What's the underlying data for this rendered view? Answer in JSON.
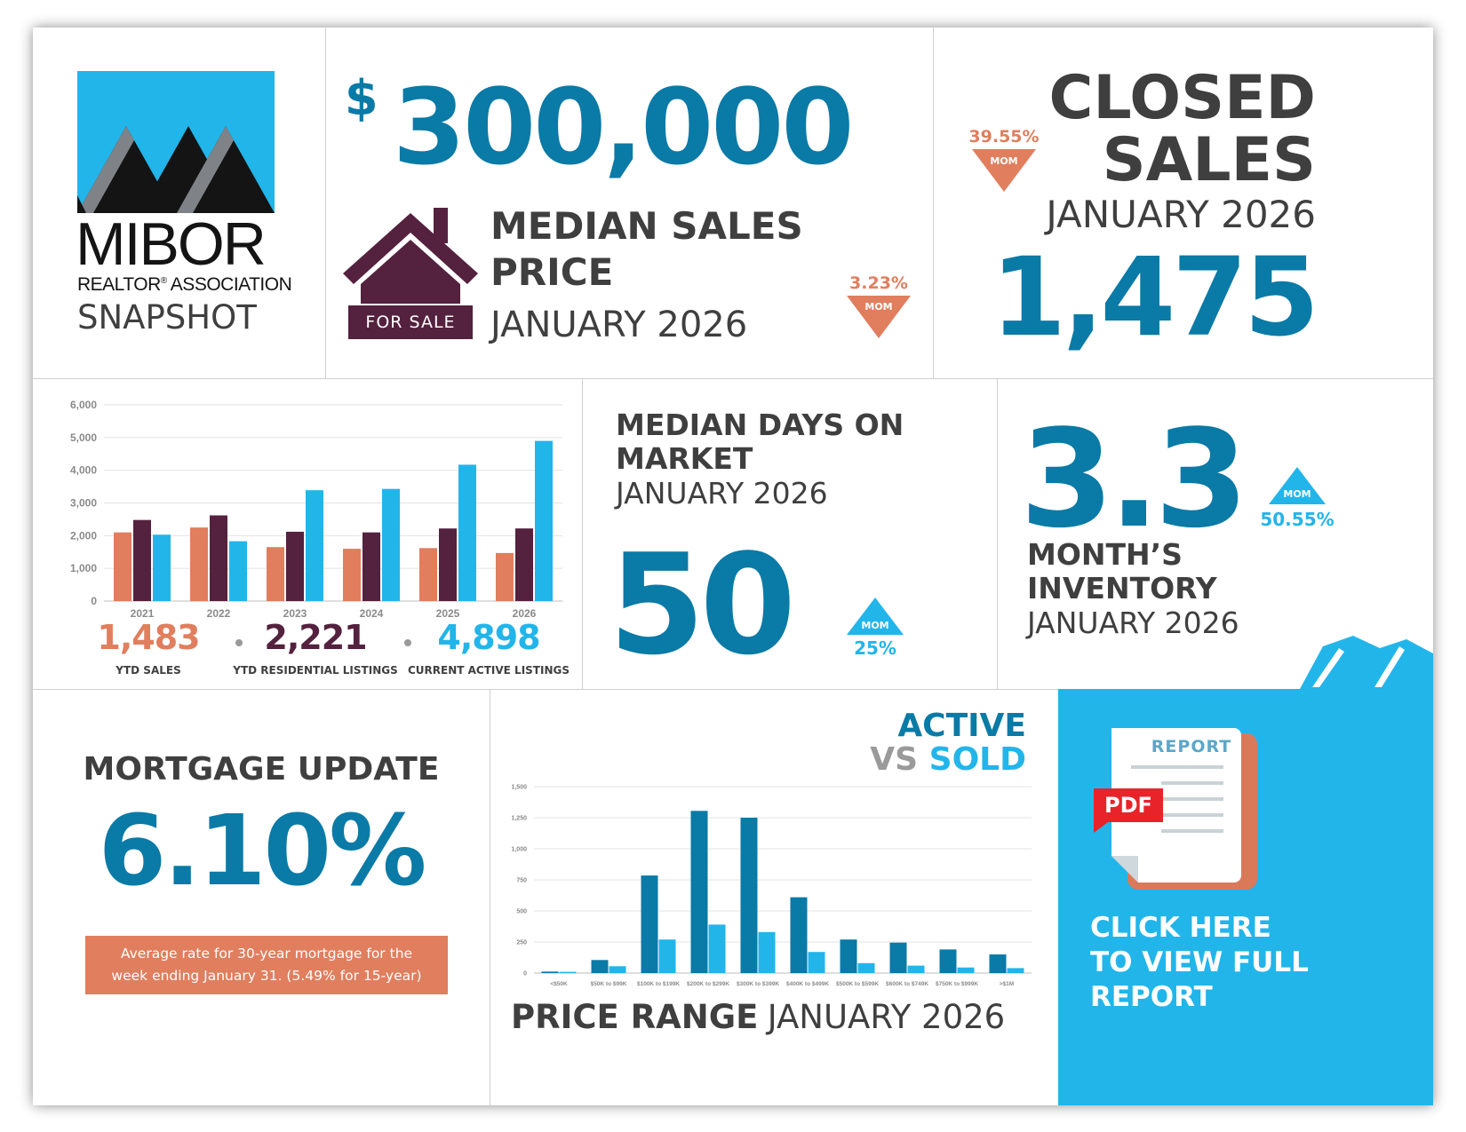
{
  "colors": {
    "teal": "#0a7aa6",
    "sky": "#22b5ea",
    "salmon": "#e07e5e",
    "plum": "#54213e",
    "dark": "#3f3f3f"
  },
  "logo": {
    "name": "MIBOR",
    "subtitle": "REALTOR",
    "subtitle_mark": "®",
    "subtitle_rest": " ASSOCIATION",
    "snapshot": "SNAPSHOT"
  },
  "median_price": {
    "dollar": "$",
    "value": "300,000",
    "title_line1": "MEDIAN SALES",
    "title_line2": "PRICE",
    "date": "JANUARY 2026",
    "sign": "FOR SALE",
    "change": "3.23%",
    "mom": "MOM",
    "direction": "down",
    "icon": "house-icon"
  },
  "closed_sales": {
    "title_line1": "CLOSED",
    "title_line2": "SALES",
    "date": "JANUARY 2026",
    "value": "1,475",
    "change": "39.55%",
    "mom": "MOM",
    "direction": "down"
  },
  "days_on_market": {
    "title_line1": "MEDIAN DAYS ON",
    "title_line2": "MARKET",
    "date": "JANUARY 2026",
    "value": "50",
    "change": "25%",
    "mom": "MOM",
    "direction": "up"
  },
  "inventory": {
    "value": "3.3",
    "title_line1": "MONTH’S",
    "title_line2": "INVENTORY",
    "date": "JANUARY 2026",
    "change": "50.55%",
    "mom": "MOM",
    "direction": "up"
  },
  "ytd_stats": [
    {
      "value": "1,483",
      "label": "YTD SALES"
    },
    {
      "value": "2,221",
      "label": "YTD RESIDENTIAL LISTINGS"
    },
    {
      "value": "4,898",
      "label": "CURRENT ACTIVE LISTINGS"
    }
  ],
  "mortgage": {
    "title": "MORTGAGE UPDATE",
    "value": "6.10%",
    "note_line1": "Average rate for 30-year mortgage for the",
    "note_line2": "week ending January 31. (5.49% for 15-year)"
  },
  "active_vs_sold": {
    "word_active": "ACTIVE",
    "word_vs": "VS",
    "word_sold": "SOLD",
    "title_bold": "PRICE RANGE",
    "title_light": "JANUARY 2026"
  },
  "report": {
    "badge": "REPORT",
    "pdf": "PDF",
    "cta_line1": "CLICK HERE",
    "cta_line2": "TO VIEW FULL",
    "cta_line3": "REPORT",
    "icon": "pdf-report-icon"
  },
  "chart_data": [
    {
      "type": "bar",
      "categories": [
        "2021",
        "2022",
        "2023",
        "2024",
        "2025",
        "2026"
      ],
      "series": [
        {
          "values": [
            2100,
            2250,
            1650,
            1600,
            1620,
            1470
          ],
          "color": "#e07e5e"
        },
        {
          "values": [
            2480,
            2620,
            2120,
            2100,
            2220,
            2221
          ],
          "color": "#54213e"
        },
        {
          "values": [
            2030,
            1830,
            3390,
            3430,
            4170,
            4898
          ],
          "color": "#22b5ea"
        }
      ],
      "ylim": [
        0,
        6000
      ],
      "yticks": [
        "0",
        "1,000",
        "2,000",
        "3,000",
        "4,000",
        "5,000",
        "6,000"
      ],
      "grid": true
    },
    {
      "type": "bar",
      "categories": [
        "<$50K",
        "$50K to $99K",
        "$100K to $199K",
        "$200K to $299K",
        "$300K to $399K",
        "$400K to $499K",
        "$500K to $599K",
        "$600K to $749K",
        "$750K to $999K",
        ">$1M"
      ],
      "series": [
        {
          "values": [
            12,
            105,
            785,
            1305,
            1250,
            610,
            270,
            245,
            190,
            150
          ],
          "color": "#0a7aa6"
        },
        {
          "values": [
            10,
            55,
            270,
            390,
            330,
            170,
            80,
            60,
            45,
            40
          ],
          "color": "#22b5ea"
        }
      ],
      "ylim": [
        0,
        1500
      ],
      "yticks": [
        "0",
        "250",
        "500",
        "750",
        "1,000",
        "1,250",
        "1,500"
      ],
      "grid": true
    }
  ]
}
